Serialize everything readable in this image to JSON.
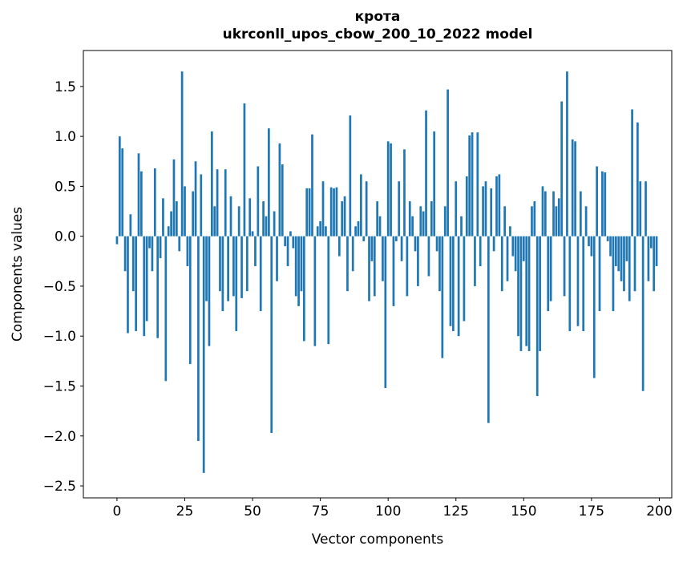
{
  "figure": {
    "background": "#ffffff"
  },
  "chart_data": {
    "type": "bar",
    "title_word": "крота",
    "title_model": "ukrconll_upos_cbow_200_10_2022 model",
    "xlabel": "Vector components",
    "ylabel": "Components values",
    "bar_color": "#1f77b4",
    "bar_width": 0.8,
    "xlim": [
      -12.4,
      204.6
    ],
    "ylim": [
      -2.62,
      1.86
    ],
    "grid": false,
    "legend": "none",
    "x_tick_values": [
      0,
      25,
      50,
      75,
      100,
      125,
      150,
      175,
      200
    ],
    "x_tick_labels": [
      "0",
      "25",
      "50",
      "75",
      "100",
      "125",
      "150",
      "175",
      "200"
    ],
    "y_tick_values": [
      1.5,
      1.0,
      0.5,
      0.0,
      -0.5,
      -1.0,
      -1.5,
      -2.0,
      -2.5
    ],
    "y_tick_labels": [
      "1.5",
      "1.0",
      "0.5",
      "0.0",
      "−0.5",
      "−1.0",
      "−1.5",
      "−2.0",
      "−2.5"
    ],
    "x": "index 0..199",
    "values": [
      -0.08,
      1.0,
      0.88,
      -0.35,
      -0.97,
      0.22,
      -0.55,
      -0.95,
      0.83,
      0.65,
      -1.0,
      -0.85,
      -0.12,
      -0.35,
      0.68,
      -1.02,
      -0.22,
      0.38,
      -1.45,
      0.1,
      0.25,
      0.77,
      0.35,
      -0.15,
      1.65,
      0.5,
      -0.3,
      -1.28,
      0.45,
      0.75,
      -2.05,
      0.62,
      -2.37,
      -0.65,
      -1.1,
      1.05,
      0.3,
      0.67,
      -0.55,
      -0.75,
      0.67,
      -0.65,
      0.4,
      -0.6,
      -0.95,
      0.3,
      -0.62,
      1.33,
      -0.55,
      0.38,
      0.05,
      -0.3,
      0.7,
      -0.75,
      0.35,
      0.2,
      1.08,
      -1.97,
      0.25,
      -0.45,
      0.93,
      0.72,
      -0.1,
      -0.3,
      0.05,
      -0.12,
      -0.6,
      -0.7,
      -0.55,
      -1.05,
      0.48,
      0.48,
      1.02,
      -1.1,
      0.1,
      0.15,
      0.55,
      0.1,
      -1.08,
      0.49,
      0.48,
      0.49,
      -0.2,
      0.35,
      0.4,
      -0.55,
      1.21,
      -0.35,
      0.1,
      0.15,
      0.62,
      -0.05,
      0.55,
      -0.65,
      -0.25,
      -0.6,
      0.35,
      0.2,
      -0.45,
      -1.52,
      0.95,
      0.93,
      -0.7,
      -0.05,
      0.55,
      -0.25,
      0.87,
      -0.6,
      0.35,
      0.2,
      -0.15,
      -0.5,
      0.3,
      0.25,
      1.26,
      -0.4,
      0.35,
      1.05,
      -0.15,
      -0.55,
      -1.22,
      0.3,
      1.47,
      -0.9,
      -0.95,
      0.55,
      -1.0,
      0.2,
      -0.85,
      0.6,
      1.01,
      1.04,
      -0.5,
      1.04,
      -0.3,
      0.5,
      0.55,
      -1.87,
      0.48,
      -0.15,
      0.6,
      0.62,
      -0.55,
      0.3,
      -0.45,
      0.1,
      -0.2,
      -0.35,
      -1.0,
      -1.15,
      -0.25,
      -1.1,
      -1.15,
      0.3,
      0.35,
      -1.6,
      -1.15,
      0.5,
      0.45,
      -0.75,
      -0.65,
      0.45,
      0.3,
      0.38,
      1.35,
      -0.6,
      1.65,
      -0.95,
      0.97,
      0.95,
      -0.9,
      0.45,
      -0.95,
      0.3,
      -0.1,
      -0.2,
      -1.42,
      0.7,
      -0.75,
      0.65,
      0.64,
      -0.05,
      -0.2,
      -0.75,
      -0.3,
      -0.35,
      -0.45,
      -0.55,
      -0.25,
      -0.65,
      1.27,
      -0.55,
      1.14,
      0.55,
      -1.55,
      0.55,
      -0.45,
      -0.12,
      -0.55,
      -0.3
    ]
  }
}
